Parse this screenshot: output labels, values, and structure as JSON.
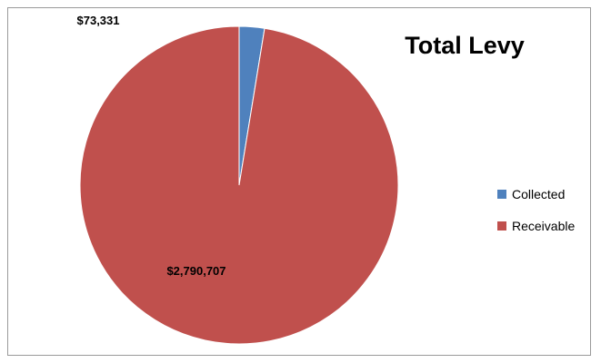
{
  "chart_data": {
    "type": "pie",
    "title": "Total Levy",
    "categories": [
      "Collected",
      "Receivable"
    ],
    "values": [
      73331,
      2790707
    ],
    "value_labels": [
      "$73,331",
      "$2,790,707"
    ],
    "colors": [
      "#4f81bd",
      "#c0504d"
    ],
    "legend_position": "right"
  }
}
